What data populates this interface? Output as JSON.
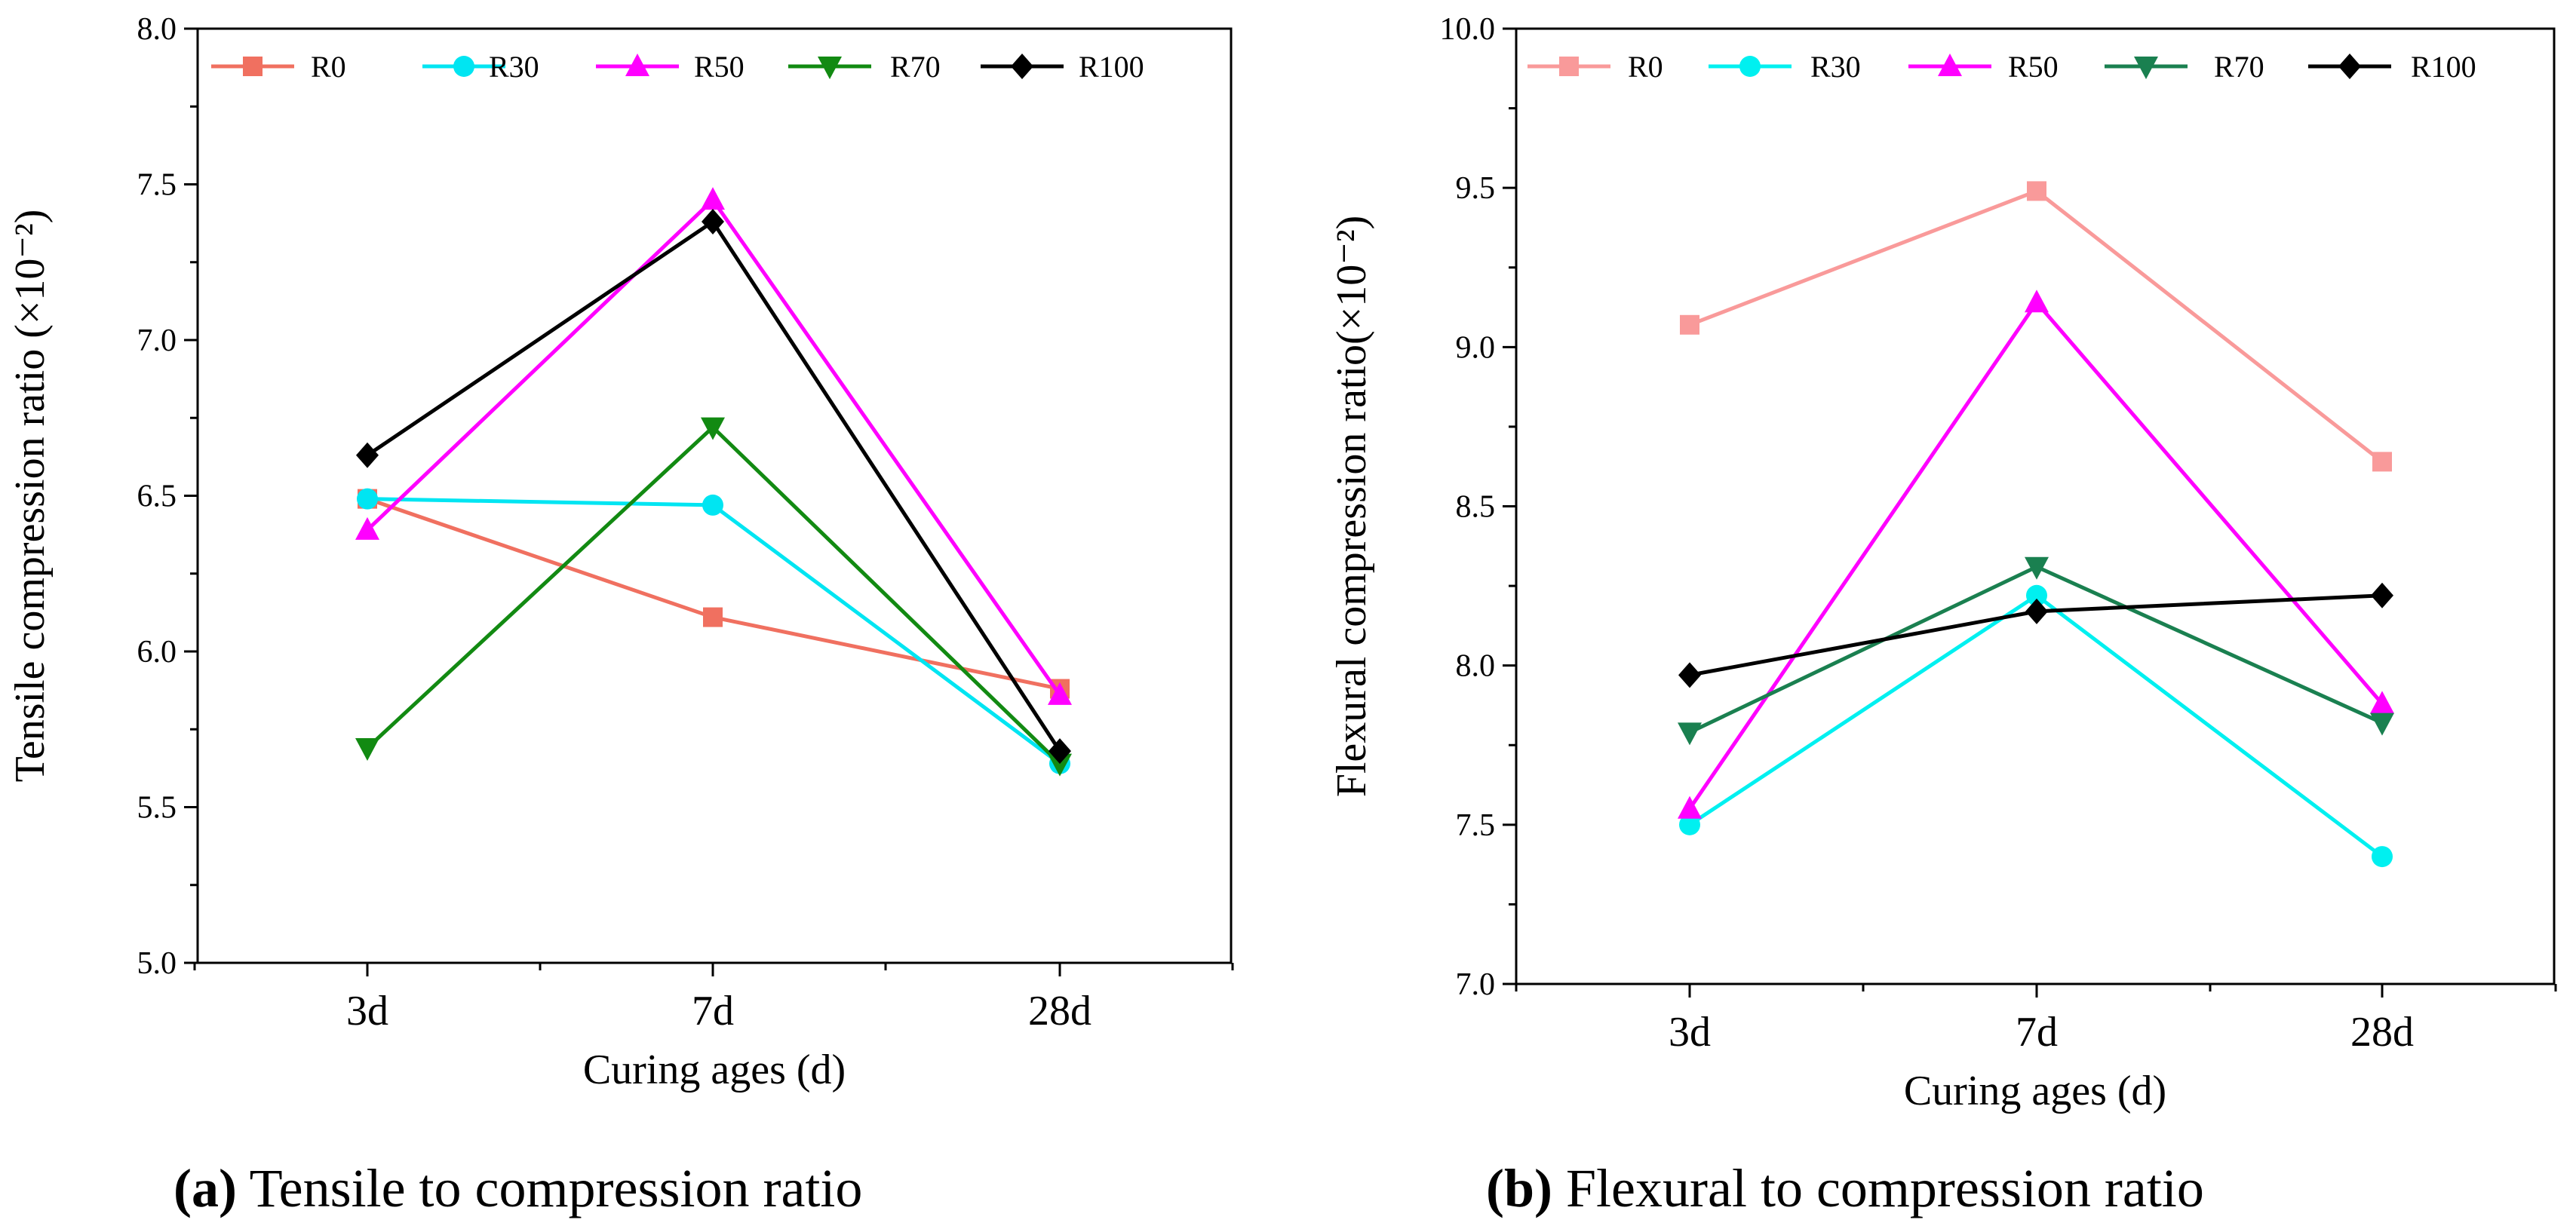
{
  "chart_data": [
    {
      "type": "line",
      "panel": "a",
      "categories": [
        "3d",
        "7d",
        "28d"
      ],
      "series": [
        {
          "name": "R0",
          "color": "#f07060",
          "marker": "square",
          "values": [
            6.49,
            6.11,
            5.88
          ]
        },
        {
          "name": "R30",
          "color": "#00e5f2",
          "marker": "circle",
          "values": [
            6.49,
            6.47,
            5.64
          ]
        },
        {
          "name": "R50",
          "color": "#ff00ff",
          "marker": "triangle-up",
          "values": [
            6.39,
            7.45,
            5.86
          ]
        },
        {
          "name": "R70",
          "color": "#128a12",
          "marker": "triangle-down",
          "values": [
            5.69,
            6.72,
            5.64
          ]
        },
        {
          "name": "R100",
          "color": "#000000",
          "marker": "diamond",
          "values": [
            6.63,
            7.38,
            5.68
          ]
        }
      ],
      "xlabel": "Curing ages (d)",
      "ylabel": "Tensile compression ratio (×10⁻²)",
      "ylim": [
        5.0,
        8.0
      ],
      "yticks": [
        "5.0",
        "5.5",
        "6.0",
        "6.5",
        "7.0",
        "7.5",
        "8.0"
      ],
      "legend": "top",
      "caption_letter": "(a)",
      "caption_text": " Tensile to compression ratio"
    },
    {
      "type": "line",
      "panel": "b",
      "categories": [
        "3d",
        "7d",
        "28d"
      ],
      "series": [
        {
          "name": "R0",
          "color": "#f99a9a",
          "marker": "square",
          "values": [
            9.07,
            9.49,
            8.64
          ]
        },
        {
          "name": "R30",
          "color": "#00f0f0",
          "marker": "circle",
          "values": [
            7.5,
            8.22,
            7.4
          ]
        },
        {
          "name": "R50",
          "color": "#ff00ff",
          "marker": "triangle-up",
          "values": [
            7.55,
            9.14,
            7.88
          ]
        },
        {
          "name": "R70",
          "color": "#1a8050",
          "marker": "triangle-down",
          "values": [
            7.79,
            8.31,
            7.82
          ]
        },
        {
          "name": "R100",
          "color": "#000000",
          "marker": "diamond",
          "values": [
            7.97,
            8.17,
            8.22
          ]
        }
      ],
      "xlabel": "Curing ages (d)",
      "ylabel": "Flexural compression ratio(×10⁻²)",
      "ylim": [
        7.0,
        10.0
      ],
      "yticks": [
        "7.0",
        "7.5",
        "8.0",
        "8.5",
        "9.0",
        "9.5",
        "10.0"
      ],
      "legend": "top",
      "caption_letter": "(b)",
      "caption_text": " Flexural to compression ratio"
    }
  ]
}
